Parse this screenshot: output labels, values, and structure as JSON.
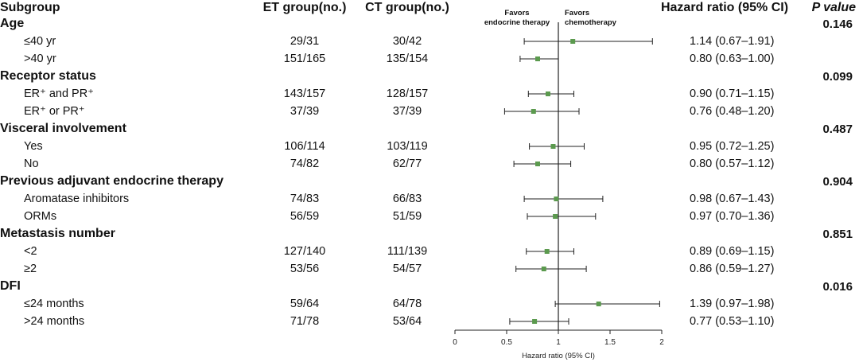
{
  "headers": {
    "subgroup": "Subgroup",
    "et": "ET group(no.)",
    "ct": "CT group(no.)",
    "hr": "Hazard ratio (95% CI)",
    "p": "P value"
  },
  "favors": {
    "left": [
      "Favors",
      "endocrine therapy"
    ],
    "right": [
      "Favors",
      "chemotherapy"
    ]
  },
  "groups": [
    {
      "label": "Age",
      "p": "0.146",
      "rows": [
        {
          "label": "≤40 yr",
          "et": "29/31",
          "ct": "30/42",
          "hr_text": "1.14 (0.67–1.91)"
        },
        {
          "label": ">40 yr",
          "et": "151/165",
          "ct": "135/154",
          "hr_text": "0.80 (0.63–1.00)"
        }
      ]
    },
    {
      "label": "Receptor status",
      "p": "0.099",
      "rows": [
        {
          "label": "ER⁺ and PR⁺",
          "et": "143/157",
          "ct": "128/157",
          "hr_text": "0.90 (0.71–1.15)"
        },
        {
          "label": "ER⁺ or PR⁺",
          "et": "37/39",
          "ct": "37/39",
          "hr_text": "0.76 (0.48–1.20)"
        }
      ]
    },
    {
      "label": "Visceral involvement",
      "p": "0.487",
      "rows": [
        {
          "label": "Yes",
          "et": "106/114",
          "ct": "103/119",
          "hr_text": "0.95 (0.72–1.25)"
        },
        {
          "label": "No",
          "et": "74/82",
          "ct": "62/77",
          "hr_text": "0.80 (0.57–1.12)"
        }
      ]
    },
    {
      "label": "Previous adjuvant endocrine therapy",
      "p": "0.904",
      "rows": [
        {
          "label": "Aromatase inhibitors",
          "et": "74/83",
          "ct": "66/83",
          "hr_text": "0.98 (0.67–1.43)"
        },
        {
          "label": "ORMs",
          "et": "56/59",
          "ct": "51/59",
          "hr_text": "0.97 (0.70–1.36)"
        }
      ]
    },
    {
      "label": "Metastasis number",
      "p": "0.851",
      "rows": [
        {
          "label": "<2",
          "et": "127/140",
          "ct": "111/139",
          "hr_text": "0.89 (0.69–1.15)"
        },
        {
          "label": "≥2",
          "et": "53/56",
          "ct": "54/57",
          "hr_text": "0.86 (0.59–1.27)"
        }
      ]
    },
    {
      "label": "DFI",
      "p": "0.016",
      "rows": [
        {
          "label": "≤24 months",
          "et": "59/64",
          "ct": "64/78",
          "hr_text": "1.39 (0.97–1.98)"
        },
        {
          "label": ">24 months",
          "et": "71/78",
          "ct": "53/64",
          "hr_text": "0.77 (0.53–1.10)"
        }
      ]
    }
  ],
  "colors": {
    "marker": "#5b9a4e",
    "line": "#222222"
  },
  "chart_data": {
    "type": "scatter",
    "xlabel": "Hazard ratio (95% CI)",
    "xlim": [
      0,
      2
    ],
    "xticks": [
      "0",
      "0.5",
      "1",
      "1.5",
      "2"
    ],
    "reference_line": 1,
    "points": [
      {
        "subgroup": "≤40 yr",
        "hr": 1.14,
        "lo": 0.67,
        "hi": 1.91
      },
      {
        "subgroup": ">40 yr",
        "hr": 0.8,
        "lo": 0.63,
        "hi": 1.0
      },
      {
        "subgroup": "ER⁺ and PR⁺",
        "hr": 0.9,
        "lo": 0.71,
        "hi": 1.15
      },
      {
        "subgroup": "ER⁺ or PR⁺",
        "hr": 0.76,
        "lo": 0.48,
        "hi": 1.2
      },
      {
        "subgroup": "Yes",
        "hr": 0.95,
        "lo": 0.72,
        "hi": 1.25
      },
      {
        "subgroup": "No",
        "hr": 0.8,
        "lo": 0.57,
        "hi": 1.12
      },
      {
        "subgroup": "Aromatase inhibitors",
        "hr": 0.98,
        "lo": 0.67,
        "hi": 1.43
      },
      {
        "subgroup": "ORMs",
        "hr": 0.97,
        "lo": 0.7,
        "hi": 1.36
      },
      {
        "subgroup": "<2",
        "hr": 0.89,
        "lo": 0.69,
        "hi": 1.15
      },
      {
        "subgroup": "≥2",
        "hr": 0.86,
        "lo": 0.59,
        "hi": 1.27
      },
      {
        "subgroup": "≤24 months",
        "hr": 1.39,
        "lo": 0.97,
        "hi": 1.98
      },
      {
        "subgroup": ">24 months",
        "hr": 0.77,
        "lo": 0.53,
        "hi": 1.1
      }
    ]
  }
}
